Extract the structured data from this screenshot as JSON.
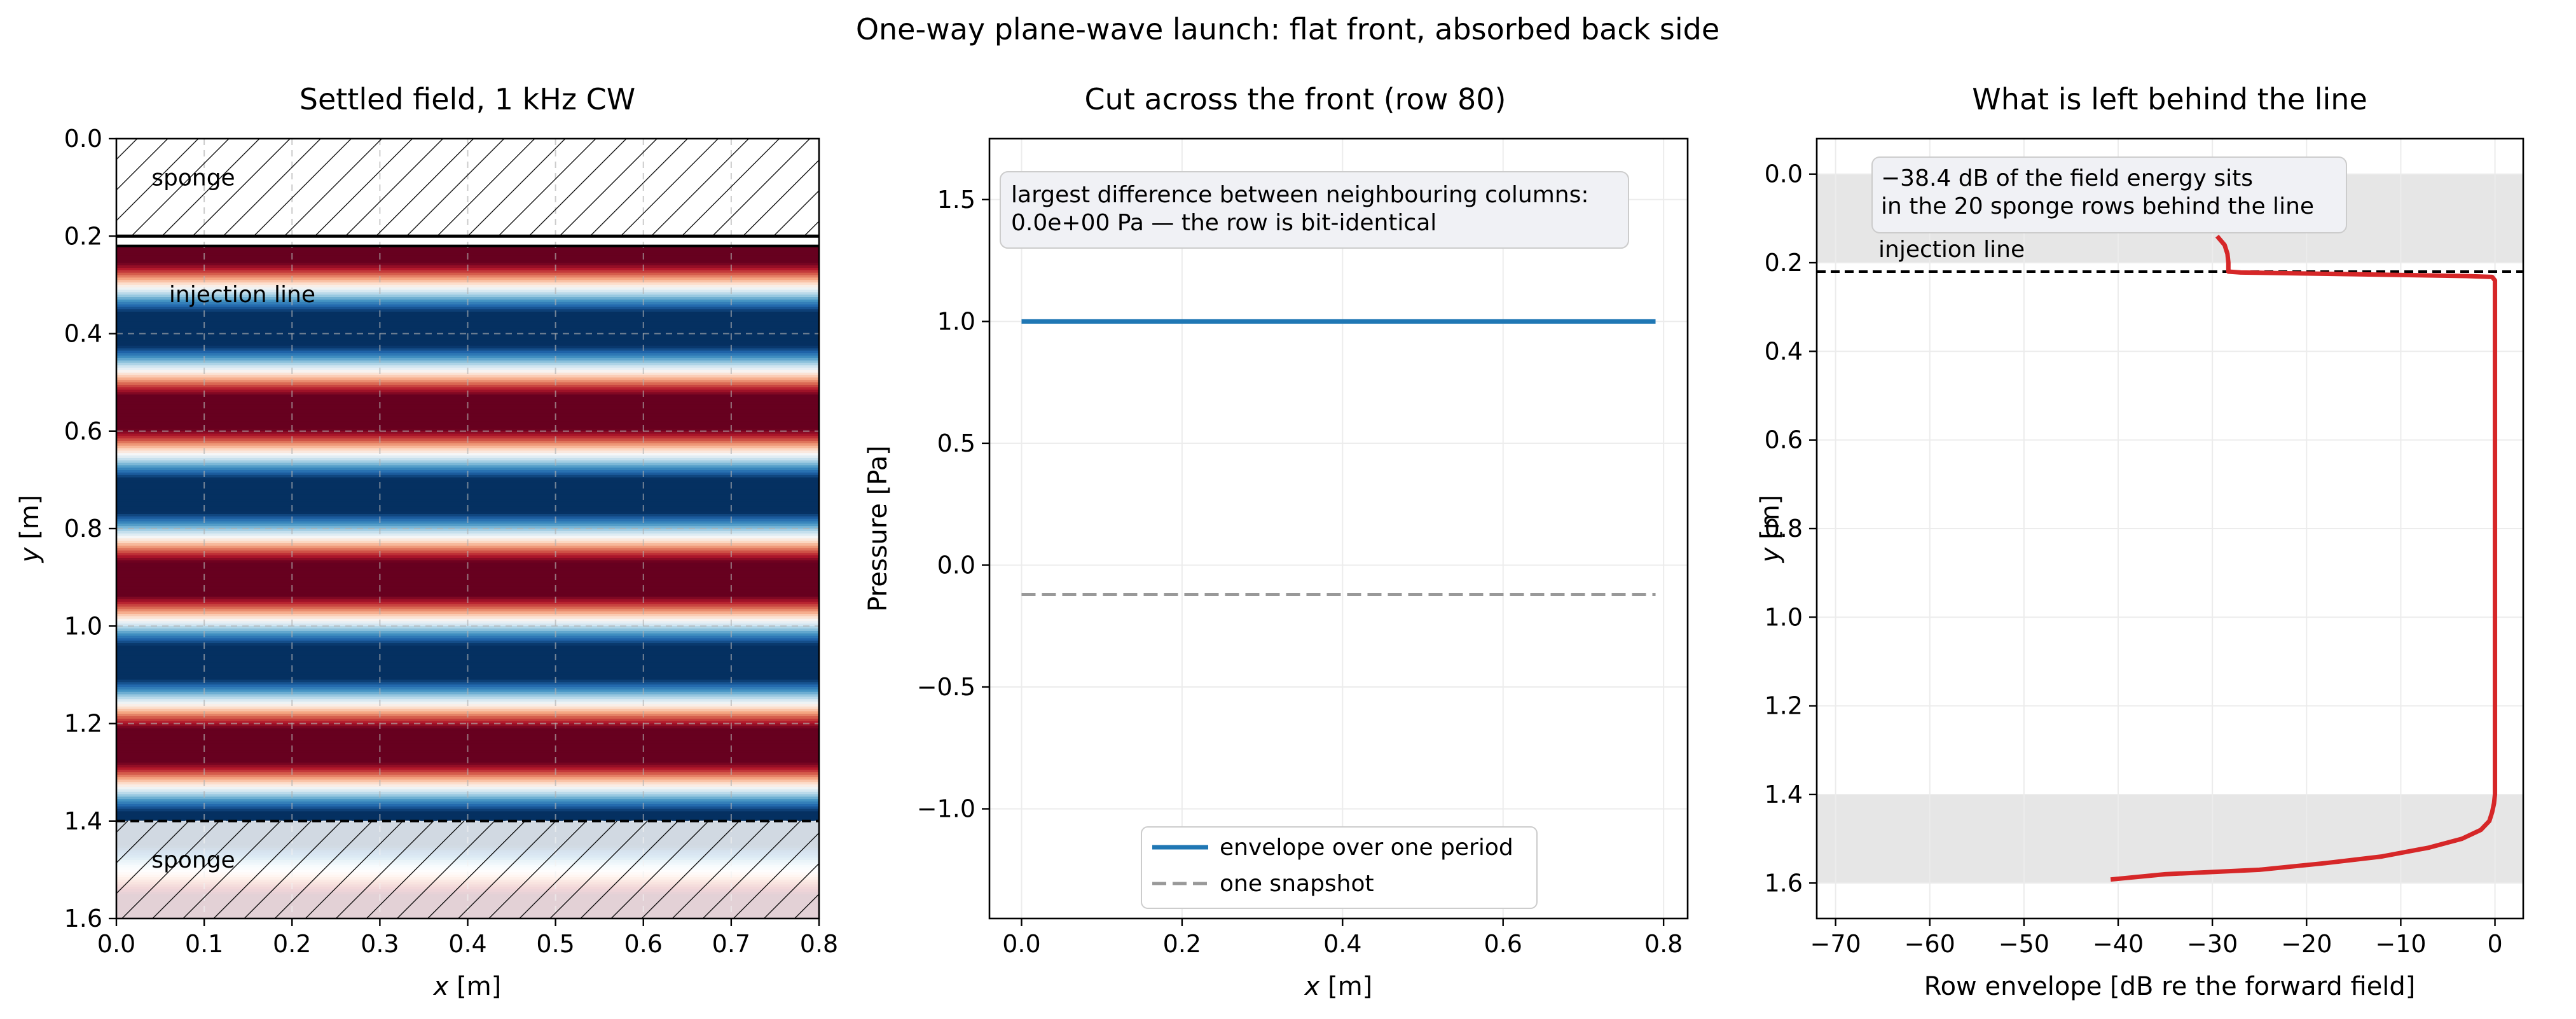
{
  "suptitle": "One-way plane-wave launch: flat front, absorbed back side",
  "colors": {
    "envelope": "#1f77b4",
    "snapshot": "#999999",
    "db_curve": "#d62728",
    "sponge_shade": "#d9d9d9",
    "annotation_box": "#f0f1f5",
    "field_cmap": "RdBu_r"
  },
  "chart_data": [
    {
      "type": "heatmap",
      "title": "Settled field, 1 kHz CW",
      "xlabel_var": "x",
      "xlabel_unit": " [m]",
      "ylabel_var": "y",
      "ylabel_unit": " [m]",
      "xlim": [
        0.0,
        0.8
      ],
      "ylim": [
        1.6,
        0.0
      ],
      "x_ticks": [
        "0.0",
        "0.1",
        "0.2",
        "0.3",
        "0.4",
        "0.5",
        "0.6",
        "0.7",
        "0.8"
      ],
      "y_ticks": [
        "0.0",
        "0.2",
        "0.4",
        "0.6",
        "0.8",
        "1.0",
        "1.2",
        "1.4",
        "1.6"
      ],
      "grid": true,
      "field": {
        "wavelength_m": 0.3417,
        "pattern": "plane wave, constant along x",
        "phase_at_injection": 0.0
      },
      "sponge_regions": [
        [
          0.0,
          0.2
        ],
        [
          1.4,
          1.6
        ]
      ],
      "injection_line_y": 0.22,
      "annotations": [
        {
          "text": "sponge",
          "x": 0.04,
          "y": 0.08
        },
        {
          "text": "injection line",
          "x": 0.06,
          "y": 0.32
        },
        {
          "text": "sponge",
          "x": 0.04,
          "y": 1.48
        }
      ]
    },
    {
      "type": "line",
      "title": "Cut across the front (row 80)",
      "xlabel_var": "x",
      "xlabel_unit": " [m]",
      "ylabel": "Pressure [Pa]",
      "xlim": [
        -0.04,
        0.83
      ],
      "ylim": [
        -1.45,
        1.75
      ],
      "x_ticks": [
        "0.0",
        "0.2",
        "0.4",
        "0.6",
        "0.8"
      ],
      "y_ticks": [
        "−1.0",
        "−0.5",
        "0.0",
        "0.5",
        "1.0",
        "1.5"
      ],
      "grid": true,
      "series": [
        {
          "name": "envelope over one period",
          "x": [
            0.0,
            0.79
          ],
          "y": [
            1.0,
            1.0
          ],
          "style": "solid"
        },
        {
          "name": "one snapshot",
          "x": [
            0.0,
            0.79
          ],
          "y": [
            -0.12,
            -0.12
          ],
          "style": "dashed"
        }
      ],
      "annotation_lines": [
        "largest difference between neighbouring columns:",
        "0.0e+00 Pa — the row is bit-identical"
      ],
      "legend": "lower center"
    },
    {
      "type": "line",
      "title": "What is left behind the line",
      "xlabel": "Row envelope [dB re the forward field]",
      "ylabel_var": "y",
      "ylabel_unit": " [m]",
      "xlim": [
        -72,
        3
      ],
      "ylim": [
        1.68,
        -0.08
      ],
      "x_ticks": [
        "−70",
        "−60",
        "−50",
        "−40",
        "−30",
        "−20",
        "−10",
        "0"
      ],
      "y_ticks": [
        "0.0",
        "0.2",
        "0.4",
        "0.6",
        "0.8",
        "1.0",
        "1.2",
        "1.4",
        "1.6"
      ],
      "grid": true,
      "shaded_bands_y": [
        [
          0.0,
          0.2
        ],
        [
          1.4,
          1.6
        ]
      ],
      "injection_line_y": 0.22,
      "injection_label": "injection line",
      "annotation_lines": [
        "−38.4 dB of the field energy sits",
        "in the 20 sponge rows behind the line"
      ],
      "series": [
        {
          "x": [
            -29.5,
            -28.7,
            -28.4,
            -28.3,
            -28.3,
            -27.0,
            -15.0,
            -3.0,
            -0.3,
            0.0,
            0.0,
            -0.1,
            -0.3,
            -0.6,
            -1.5,
            -3.5,
            -7.0,
            -12.0,
            -18.0,
            -25.0,
            -35.0,
            -40.8
          ],
          "y": [
            0.14,
            0.16,
            0.18,
            0.2,
            0.22,
            0.222,
            0.226,
            0.23,
            0.232,
            0.24,
            1.4,
            1.42,
            1.44,
            1.46,
            1.48,
            1.5,
            1.52,
            1.54,
            1.555,
            1.57,
            1.58,
            1.592
          ]
        }
      ]
    }
  ]
}
